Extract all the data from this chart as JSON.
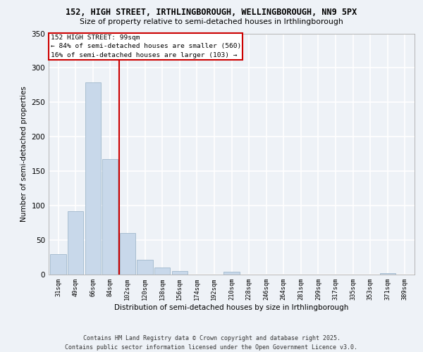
{
  "title1": "152, HIGH STREET, IRTHLINGBOROUGH, WELLINGBOROUGH, NN9 5PX",
  "title2": "Size of property relative to semi-detached houses in Irthlingborough",
  "xlabel": "Distribution of semi-detached houses by size in Irthlingborough",
  "ylabel": "Number of semi-detached properties",
  "annotation_title": "152 HIGH STREET: 99sqm",
  "annotation_line1": "← 84% of semi-detached houses are smaller (560)",
  "annotation_line2": "16% of semi-detached houses are larger (103) →",
  "bar_categories": [
    31,
    49,
    66,
    84,
    102,
    120,
    138,
    156,
    174,
    192,
    210,
    228,
    246,
    264,
    281,
    299,
    317,
    335,
    353,
    371,
    389
  ],
  "bar_values": [
    30,
    92,
    279,
    168,
    60,
    21,
    10,
    5,
    0,
    0,
    4,
    0,
    0,
    0,
    0,
    0,
    0,
    0,
    0,
    2,
    0
  ],
  "bar_color": "#c8d8ea",
  "bar_edge_color": "#a0b8cc",
  "vline_color": "#cc0000",
  "vline_x": 3.5,
  "ylim": [
    0,
    350
  ],
  "yticks": [
    0,
    50,
    100,
    150,
    200,
    250,
    300,
    350
  ],
  "background_color": "#eef2f7",
  "grid_color": "#ffffff",
  "footer1": "Contains HM Land Registry data © Crown copyright and database right 2025.",
  "footer2": "Contains public sector information licensed under the Open Government Licence v3.0."
}
